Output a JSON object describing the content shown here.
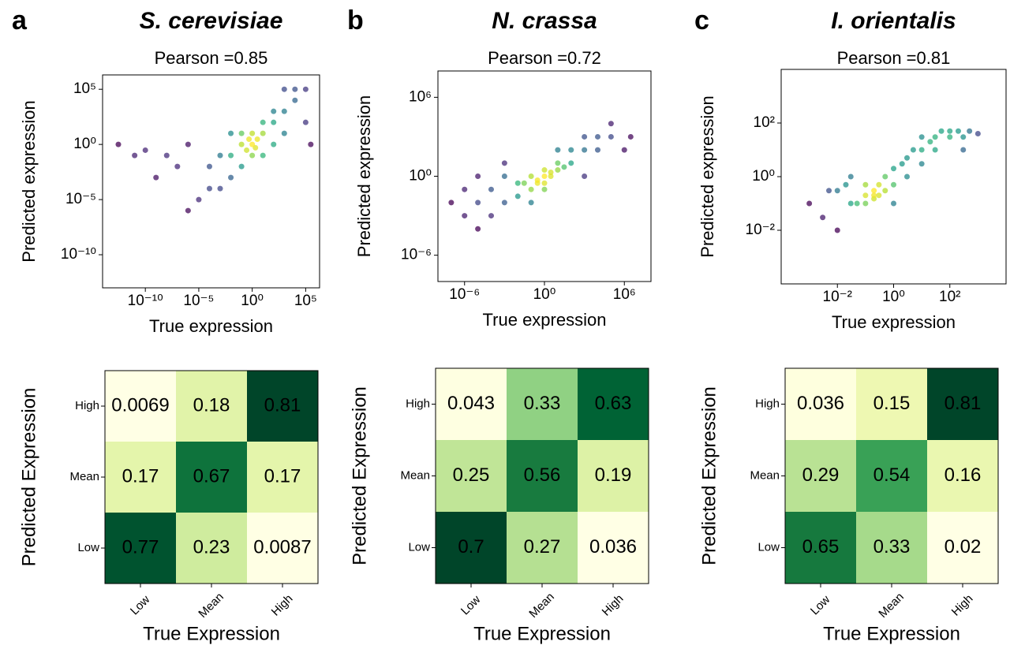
{
  "chart_data": [
    {
      "type": "scatter",
      "panel_label": "a",
      "title": "S. cerevisiae",
      "subtitle": "Pearson =0.85",
      "xlabel": "True expression",
      "ylabel": "Predicted expression",
      "xscale": "log",
      "yscale": "log",
      "colormap": "viridis",
      "xlim": [
        1e-14,
        2000000.0
      ],
      "ylim": [
        1e-13,
        2000000.0
      ],
      "xticks": [
        {
          "value": 1e-10,
          "label": "10⁻¹⁰"
        },
        {
          "value": 1e-05,
          "label": "10⁻⁵"
        },
        {
          "value": 1,
          "label": "10⁰"
        },
        {
          "value": 100000.0,
          "label": "10⁵"
        }
      ],
      "yticks": [
        {
          "value": 1e-10,
          "label": "10⁻¹⁰"
        },
        {
          "value": 1e-05,
          "label": "10⁻⁵"
        },
        {
          "value": 1,
          "label": "10⁰"
        },
        {
          "value": 100000.0,
          "label": "10⁵"
        }
      ],
      "x": [
        3e-13,
        1e-11,
        1e-10,
        1e-09,
        1e-08,
        1e-07,
        1e-06,
        1e-05,
        0.0001,
        0.001,
        0.001,
        0.01,
        0.01,
        0.1,
        0.1,
        1,
        1,
        3,
        10,
        10,
        0.3,
        2,
        0.5,
        100,
        100,
        1000,
        1000,
        10000.0,
        10000.0,
        100000.0,
        100000.0,
        300000.0,
        1e-06,
        0.01,
        10,
        1000,
        0.1,
        1,
        100,
        0.0001
      ],
      "y": [
        1,
        0.1,
        0.3,
        0.001,
        0.1,
        0.01,
        1,
        1e-05,
        0.01,
        0.1,
        0.0001,
        0.1,
        10,
        1,
        0.01,
        1,
        10,
        3,
        10,
        100,
        0.3,
        0.5,
        3,
        100,
        1000,
        1000,
        10,
        10000.0,
        100000.0,
        100000.0,
        100,
        1,
        1e-06,
        0.001,
        0.1,
        100000.0,
        10,
        0.1,
        1,
        0.0001
      ]
    },
    {
      "type": "scatter",
      "panel_label": "b",
      "title": "N. crassa",
      "subtitle": "Pearson =0.72",
      "xlabel": "True expression",
      "ylabel": "Predicted expression",
      "xscale": "log",
      "yscale": "log",
      "colormap": "viridis",
      "xlim": [
        1e-08,
        100000000.0
      ],
      "ylim": [
        1e-08,
        100000000.0
      ],
      "xticks": [
        {
          "value": 1e-06,
          "label": "10⁻⁶"
        },
        {
          "value": 1,
          "label": "10⁰"
        },
        {
          "value": 1000000.0,
          "label": "10⁶"
        }
      ],
      "yticks": [
        {
          "value": 1e-06,
          "label": "10⁻⁶"
        },
        {
          "value": 1,
          "label": "10⁰"
        },
        {
          "value": 1000000.0,
          "label": "10⁶"
        }
      ],
      "x": [
        1e-07,
        1e-06,
        1e-06,
        1e-05,
        1e-05,
        0.0001,
        0.0001,
        0.001,
        0.001,
        0.01,
        0.01,
        0.1,
        0.1,
        0.3,
        1,
        1,
        1,
        3,
        10,
        10,
        100,
        100,
        1000,
        1000,
        10000.0,
        10000.0,
        100000.0,
        1000000.0,
        3000000.0,
        0.3,
        3,
        0.03,
        30,
        1e-05,
        100000.0,
        0.001,
        1000,
        0.1,
        10,
        1
      ],
      "y": [
        0.01,
        0.001,
        0.1,
        0.01,
        1,
        0.001,
        0.1,
        0.01,
        1,
        0.03,
        0.3,
        0.1,
        1,
        0.3,
        1,
        3,
        0.3,
        1,
        3,
        10,
        10,
        100,
        100,
        1000,
        100,
        1000,
        1000,
        100,
        1000,
        0.5,
        2,
        0.3,
        5,
        0.0001,
        10000.0,
        10,
        1,
        0.01,
        100,
        0.1
      ]
    },
    {
      "type": "scatter",
      "panel_label": "c",
      "title": "I. orientalis",
      "subtitle": "Pearson =0.81",
      "xlabel": "True expression",
      "ylabel": "Predicted expression",
      "xscale": "log",
      "yscale": "log",
      "colormap": "viridis",
      "xlim": [
        0.0001,
        10000.0
      ],
      "ylim": [
        0.0001,
        10000.0
      ],
      "xticks": [
        {
          "value": 0.01,
          "label": "10⁻²"
        },
        {
          "value": 1,
          "label": "10⁰"
        },
        {
          "value": 100,
          "label": "10²"
        }
      ],
      "yticks": [
        {
          "value": 0.01,
          "label": "10⁻²"
        },
        {
          "value": 1,
          "label": "10⁰"
        },
        {
          "value": 100,
          "label": "10²"
        }
      ],
      "x": [
        0.001,
        0.003,
        0.01,
        0.01,
        0.03,
        0.03,
        0.1,
        0.1,
        0.1,
        0.2,
        0.2,
        0.3,
        0.3,
        0.5,
        1,
        1,
        2,
        3,
        5,
        10,
        10,
        20,
        30,
        50,
        100,
        100,
        200,
        300,
        500,
        1000,
        0.05,
        0.02,
        0.5,
        3,
        30,
        0.005,
        300,
        1,
        10,
        0.2
      ],
      "y": [
        0.1,
        0.03,
        0.3,
        0.01,
        0.1,
        1,
        0.1,
        0.2,
        0.5,
        0.15,
        0.3,
        0.2,
        0.5,
        1,
        2,
        0.5,
        3,
        5,
        10,
        10,
        30,
        20,
        30,
        50,
        50,
        30,
        50,
        30,
        50,
        40,
        0.1,
        0.5,
        0.3,
        1,
        10,
        0.3,
        10,
        0.1,
        3,
        0.2
      ]
    },
    {
      "type": "heatmap",
      "xlabel": "True Expression",
      "ylabel": "Predicted Expression",
      "colormap": "YlGn",
      "x": [
        "Low",
        "Mean",
        "High"
      ],
      "y": [
        "Low",
        "Mean",
        "High"
      ],
      "values": [
        [
          0.77,
          0.23,
          0.0087
        ],
        [
          0.17,
          0.67,
          0.17
        ],
        [
          0.0069,
          0.18,
          0.81
        ]
      ]
    },
    {
      "type": "heatmap",
      "xlabel": "True Expression",
      "ylabel": "Predicted Expression",
      "colormap": "YlGn",
      "x": [
        "Low",
        "Mean",
        "High"
      ],
      "y": [
        "Low",
        "Mean",
        "High"
      ],
      "values": [
        [
          0.7,
          0.27,
          0.036
        ],
        [
          0.25,
          0.56,
          0.19
        ],
        [
          0.043,
          0.33,
          0.63
        ]
      ]
    },
    {
      "type": "heatmap",
      "xlabel": "True Expression",
      "ylabel": "Predicted Expression",
      "colormap": "YlGn",
      "x": [
        "Low",
        "Mean",
        "High"
      ],
      "y": [
        "Low",
        "Mean",
        "High"
      ],
      "values": [
        [
          0.65,
          0.33,
          0.02
        ],
        [
          0.29,
          0.54,
          0.16
        ],
        [
          0.036,
          0.15,
          0.81
        ]
      ]
    }
  ]
}
